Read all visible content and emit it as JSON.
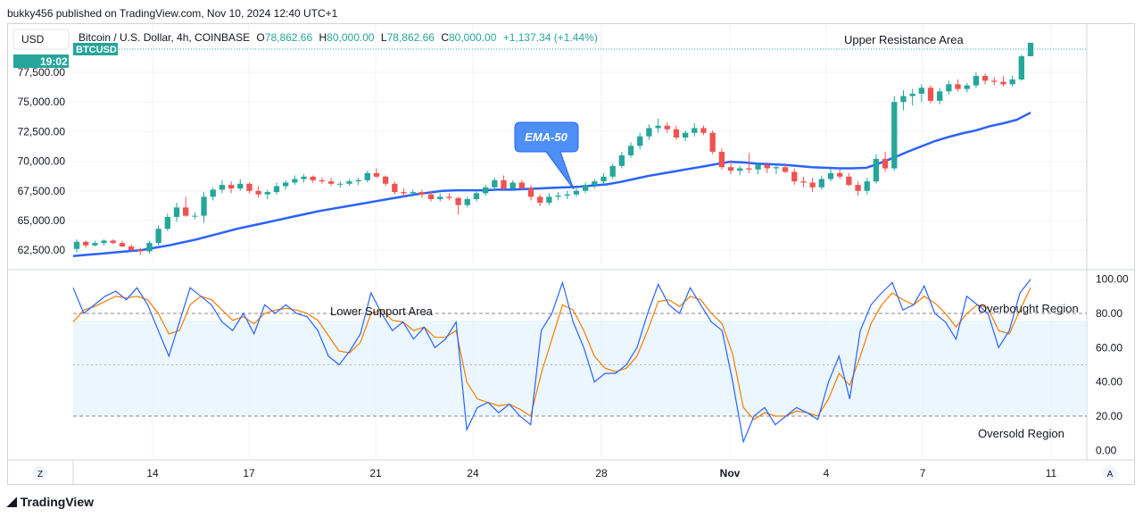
{
  "header": {
    "publisher": "bukky456 published on TradingView.com, Nov 10, 2024 12:40 UTC+1"
  },
  "currency_button": "USD",
  "symbol_line": {
    "name": "Bitcoin / U.S. Dollar, 4h, COINBASE",
    "open_label": "O",
    "open": "78,862.66",
    "high_label": "H",
    "high": "80,000.00",
    "low_label": "L",
    "low": "78,862.66",
    "close_label": "C",
    "close": "80,000.00",
    "change": "+1,137.34 (+1.44%)"
  },
  "price_tag": {
    "countdown": "19:02",
    "ticker": "BTCUSD"
  },
  "footer": {
    "brand": "TradingView"
  },
  "bottom_buttons": {
    "left": "Z",
    "right": "A"
  },
  "colors": {
    "up": "#26a69a",
    "down": "#ef5350",
    "ema": "#2962ff",
    "k": "#2962ff",
    "d": "#f57c00",
    "band": "#e3f2fd",
    "callout": "#4d8ef7"
  },
  "chart_data": [
    {
      "type": "candlestick",
      "title": "",
      "ylim": [
        61000,
        81500
      ],
      "y_ticks": [
        "62,500.00",
        "65,000.00",
        "67,500.00",
        "70,000.00",
        "72,500.00",
        "75,000.00",
        "77,500.00"
      ],
      "x_ticks": [
        "14",
        "17",
        "21",
        "24",
        "28",
        "Nov",
        "4",
        "7",
        "11"
      ],
      "annotations": [
        "Upper Resistance Area",
        "EMA-50"
      ],
      "candles": [
        [
          62600,
          63400,
          62300,
          63200
        ],
        [
          63200,
          63300,
          62700,
          62900
        ],
        [
          62900,
          63300,
          62800,
          63100
        ],
        [
          63100,
          63400,
          62900,
          63300
        ],
        [
          63300,
          63400,
          63000,
          63100
        ],
        [
          63100,
          63300,
          62800,
          62800
        ],
        [
          62800,
          63000,
          62400,
          62500
        ],
        [
          62500,
          62700,
          62100,
          62400
        ],
        [
          62400,
          63300,
          62200,
          63100
        ],
        [
          63100,
          64600,
          62900,
          64300
        ],
        [
          64300,
          65600,
          64100,
          65300
        ],
        [
          65300,
          66500,
          64900,
          66100
        ],
        [
          66100,
          67000,
          65300,
          65400
        ],
        [
          65400,
          65700,
          65100,
          65400
        ],
        [
          65400,
          67400,
          64800,
          67000
        ],
        [
          67000,
          67800,
          66700,
          67600
        ],
        [
          67600,
          68400,
          67300,
          68000
        ],
        [
          68000,
          68300,
          67300,
          67700
        ],
        [
          67700,
          68500,
          67500,
          68100
        ],
        [
          68100,
          68200,
          67300,
          67500
        ],
        [
          67500,
          67900,
          66900,
          67200
        ],
        [
          67200,
          67600,
          66800,
          67400
        ],
        [
          67400,
          68200,
          67200,
          67900
        ],
        [
          67900,
          68400,
          67600,
          68200
        ],
        [
          68200,
          68800,
          68000,
          68500
        ],
        [
          68500,
          68900,
          68200,
          68700
        ],
        [
          68700,
          68800,
          68200,
          68400
        ],
        [
          68400,
          68600,
          68100,
          68300
        ],
        [
          68300,
          68600,
          67900,
          68100
        ],
        [
          68100,
          68300,
          67800,
          68100
        ],
        [
          68100,
          68500,
          67900,
          68300
        ],
        [
          68300,
          68600,
          68000,
          68400
        ],
        [
          68400,
          69200,
          68200,
          69000
        ],
        [
          69000,
          69400,
          68600,
          68700
        ],
        [
          68700,
          68800,
          67900,
          68100
        ],
        [
          68100,
          68300,
          67200,
          67400
        ],
        [
          67400,
          67700,
          67000,
          67300
        ],
        [
          67300,
          67600,
          67000,
          67400
        ],
        [
          67400,
          67600,
          66900,
          67200
        ],
        [
          67200,
          67500,
          66600,
          66800
        ],
        [
          66800,
          67300,
          66600,
          67000
        ],
        [
          67000,
          67300,
          66700,
          66900
        ],
        [
          66900,
          67000,
          65500,
          66300
        ],
        [
          66300,
          67000,
          66100,
          66800
        ],
        [
          66800,
          67500,
          66600,
          67300
        ],
        [
          67300,
          68000,
          67100,
          67800
        ],
        [
          67800,
          68600,
          67500,
          68400
        ],
        [
          68400,
          68800,
          67500,
          67700
        ],
        [
          67700,
          68400,
          67500,
          68200
        ],
        [
          68200,
          68400,
          67600,
          67700
        ],
        [
          67700,
          68000,
          66700,
          67000
        ],
        [
          67000,
          67200,
          66200,
          66500
        ],
        [
          66500,
          67300,
          66300,
          67000
        ],
        [
          67000,
          67400,
          66700,
          67100
        ],
        [
          67100,
          67500,
          66800,
          67200
        ],
        [
          67200,
          67700,
          67000,
          67500
        ],
        [
          67500,
          68200,
          67300,
          68000
        ],
        [
          68000,
          68500,
          67700,
          68300
        ],
        [
          68300,
          69000,
          68000,
          68700
        ],
        [
          68700,
          69800,
          68500,
          69600
        ],
        [
          69600,
          70800,
          69400,
          70500
        ],
        [
          70500,
          71600,
          70300,
          71300
        ],
        [
          71300,
          72400,
          71000,
          72100
        ],
        [
          72100,
          73100,
          71800,
          72800
        ],
        [
          72800,
          73600,
          72400,
          73000
        ],
        [
          73000,
          73300,
          72400,
          72700
        ],
        [
          72700,
          73000,
          71800,
          72000
        ],
        [
          72000,
          72600,
          71700,
          72400
        ],
        [
          72400,
          73200,
          72100,
          72800
        ],
        [
          72800,
          73000,
          72200,
          72400
        ],
        [
          72400,
          72600,
          70600,
          70800
        ],
        [
          70800,
          71100,
          69300,
          69500
        ],
        [
          69500,
          70100,
          68900,
          69200
        ],
        [
          69200,
          69600,
          68800,
          69400
        ],
        [
          69400,
          70700,
          69000,
          69300
        ],
        [
          69300,
          69900,
          68900,
          69700
        ],
        [
          69700,
          69900,
          69000,
          69400
        ],
        [
          69400,
          69800,
          68900,
          69500
        ],
        [
          69500,
          69700,
          69000,
          69100
        ],
        [
          69100,
          69400,
          68000,
          68300
        ],
        [
          68300,
          68700,
          67800,
          68200
        ],
        [
          68200,
          68600,
          67400,
          67800
        ],
        [
          67800,
          68800,
          67600,
          68500
        ],
        [
          68500,
          69400,
          68300,
          69000
        ],
        [
          69000,
          69300,
          68500,
          68700
        ],
        [
          68700,
          69000,
          67900,
          68000
        ],
        [
          68000,
          68300,
          67100,
          67500
        ],
        [
          67500,
          68600,
          67200,
          68300
        ],
        [
          68300,
          70600,
          68100,
          70200
        ],
        [
          70200,
          70800,
          69100,
          69400
        ],
        [
          69400,
          75500,
          69200,
          75000
        ],
        [
          75000,
          76000,
          74300,
          75500
        ],
        [
          75500,
          76100,
          74700,
          75700
        ],
        [
          75700,
          76500,
          75000,
          76200
        ],
        [
          76200,
          76400,
          74900,
          75100
        ],
        [
          75100,
          76200,
          74800,
          75900
        ],
        [
          75900,
          76800,
          75600,
          76500
        ],
        [
          76500,
          76900,
          75900,
          76100
        ],
        [
          76100,
          76600,
          75800,
          76400
        ],
        [
          76400,
          77500,
          76200,
          77200
        ],
        [
          77200,
          77400,
          76500,
          76800
        ],
        [
          76800,
          77100,
          76400,
          76700
        ],
        [
          76700,
          77200,
          76300,
          76500
        ],
        [
          76500,
          77200,
          76300,
          76900
        ],
        [
          76900,
          79000,
          76800,
          78860
        ],
        [
          78860,
          80000,
          78860,
          80000
        ]
      ],
      "ema50": [
        62000,
        62100,
        62200,
        62300,
        62400,
        62500,
        62700,
        62900,
        63150,
        63400,
        63700,
        64000,
        64300,
        64550,
        64800,
        65050,
        65300,
        65550,
        65800,
        66000,
        66200,
        66400,
        66600,
        66800,
        67000,
        67200,
        67350,
        67500,
        67550,
        67550,
        67550,
        67600,
        67600,
        67650,
        67700,
        67750,
        67800,
        67850,
        67950,
        68050,
        68250,
        68500,
        68750,
        68950,
        69150,
        69350,
        69550,
        69750,
        69950,
        69900,
        69800,
        69750,
        69700,
        69600,
        69500,
        69450,
        69400,
        69400,
        69450,
        69850,
        70300,
        70800,
        71250,
        71700,
        72050,
        72350,
        72600,
        72950,
        73200,
        73500,
        74100
      ]
    },
    {
      "type": "line",
      "title": "",
      "ylim": [
        -4,
        104
      ],
      "y_ticks": [
        "100.00",
        "80.00",
        "60.00",
        "40.00",
        "20.00",
        "0.00"
      ],
      "levels": [
        80,
        50,
        20
      ],
      "annotations": [
        "Lower Support Area",
        "Overbought Region",
        "Oversold Region"
      ],
      "series": [
        {
          "values": [
            95,
            80,
            85,
            90,
            93,
            88,
            95,
            85,
            70,
            55,
            75,
            95,
            90,
            85,
            75,
            70,
            80,
            68,
            85,
            80,
            85,
            80,
            78,
            70,
            55,
            50,
            58,
            68,
            92,
            80,
            70,
            75,
            65,
            72,
            60,
            65,
            75,
            12,
            25,
            28,
            22,
            27,
            20,
            15,
            70,
            80,
            98,
            75,
            60,
            40,
            45,
            45,
            50,
            60,
            80,
            97,
            85,
            80,
            95,
            85,
            75,
            70,
            40,
            5,
            20,
            25,
            15,
            20,
            25,
            22,
            18,
            40,
            55,
            30,
            70,
            85,
            92,
            98,
            82,
            85,
            96,
            80,
            75,
            65,
            90,
            85,
            80,
            60,
            70,
            92,
            100
          ]
        },
        {
          "values": [
            75,
            82,
            84,
            87,
            90,
            89,
            90,
            88,
            80,
            68,
            70,
            85,
            90,
            88,
            82,
            76,
            78,
            74,
            80,
            82,
            83,
            82,
            80,
            76,
            67,
            58,
            57,
            63,
            80,
            82,
            76,
            75,
            70,
            72,
            66,
            66,
            70,
            40,
            30,
            28,
            26,
            27,
            24,
            20,
            45,
            65,
            85,
            82,
            70,
            55,
            48,
            46,
            48,
            55,
            70,
            87,
            88,
            84,
            90,
            88,
            80,
            74,
            56,
            25,
            18,
            22,
            20,
            20,
            23,
            22,
            20,
            30,
            45,
            38,
            55,
            74,
            85,
            92,
            88,
            85,
            90,
            86,
            80,
            72,
            80,
            85,
            83,
            70,
            68,
            82,
            95
          ]
        }
      ]
    }
  ]
}
